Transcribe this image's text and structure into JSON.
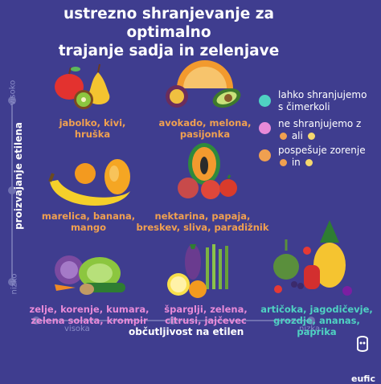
{
  "title": {
    "line1": "ustrezno shranjevanje za optimalno",
    "line2": "trajanje sadja in zelenjave"
  },
  "y_axis": {
    "title": "proizvajanje etilena",
    "high": "visoko",
    "low": "nizko"
  },
  "x_axis": {
    "title": "občutljivost na etilen",
    "high": "visoka",
    "low": "nizka"
  },
  "cells": {
    "r1c1": "jabolko, kivi, hruška",
    "r1c2_line1": "avokado, melona,",
    "r1c2_line2": "pasijonka",
    "r2c1_line1": "marelica, banana,",
    "r2c1_line2": "mango",
    "r2c2_line1": "nektarina, papaja,",
    "r2c2_line2": "breskev, sliva, paradižnik",
    "r3c1_line1": "zelje, korenje, kumara,",
    "r3c1_line2": "zelena solata, krompir",
    "r3c2_line1": "šparglji, zelena,",
    "r3c2_line2": "citrusi, jajčevec",
    "r3c3_line1": "artičoka, jagodičevje,",
    "r3c3_line2": "grozdje, ananas, paprika"
  },
  "legend": {
    "item1_line1": "lahko shranjujemo",
    "item1_line2": "s čimerkoli",
    "item2_line1": "ne shranjujemo z",
    "item2_line2": "ali",
    "item3_line1": "pospešuje zorenje",
    "item3_line2": "in"
  },
  "colors": {
    "background": "#3f3d8f",
    "teal": "#4fd2c2",
    "pink": "#e88ad8",
    "orange": "#f0a050",
    "yellow": "#f5d76e"
  },
  "logo": "eufic",
  "icons": [
    "apple-pear-kiwi-illustration",
    "avocado-melon-passionfruit-illustration",
    "banana-apricot-mango-illustration",
    "papaya-nectarine-tomato-illustration",
    "cabbage-carrot-cucumber-illustration",
    "asparagus-eggplant-citrus-illustration",
    "artichoke-berries-pineapple-illustration"
  ]
}
